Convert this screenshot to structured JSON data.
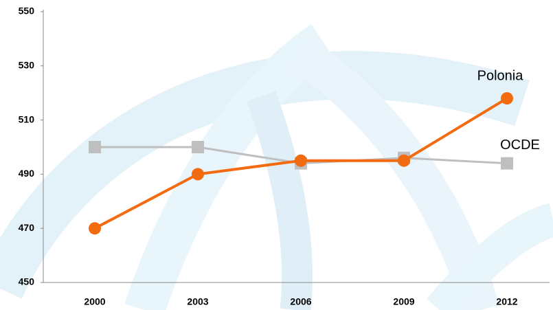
{
  "chart_data": {
    "type": "line",
    "categories": [
      "2000",
      "2003",
      "2006",
      "2009",
      "2012"
    ],
    "series": [
      {
        "name": "OCDE",
        "color": "#bfbfbf",
        "marker": "square",
        "values": [
          500,
          500,
          494,
          496,
          494
        ]
      },
      {
        "name": "Polonia",
        "color": "#f26b10",
        "marker": "circle",
        "values": [
          470,
          490,
          495,
          495,
          518
        ]
      }
    ],
    "ylim": [
      450,
      550
    ],
    "yticks": [
      450,
      470,
      490,
      510,
      530,
      550
    ],
    "grid": false
  }
}
